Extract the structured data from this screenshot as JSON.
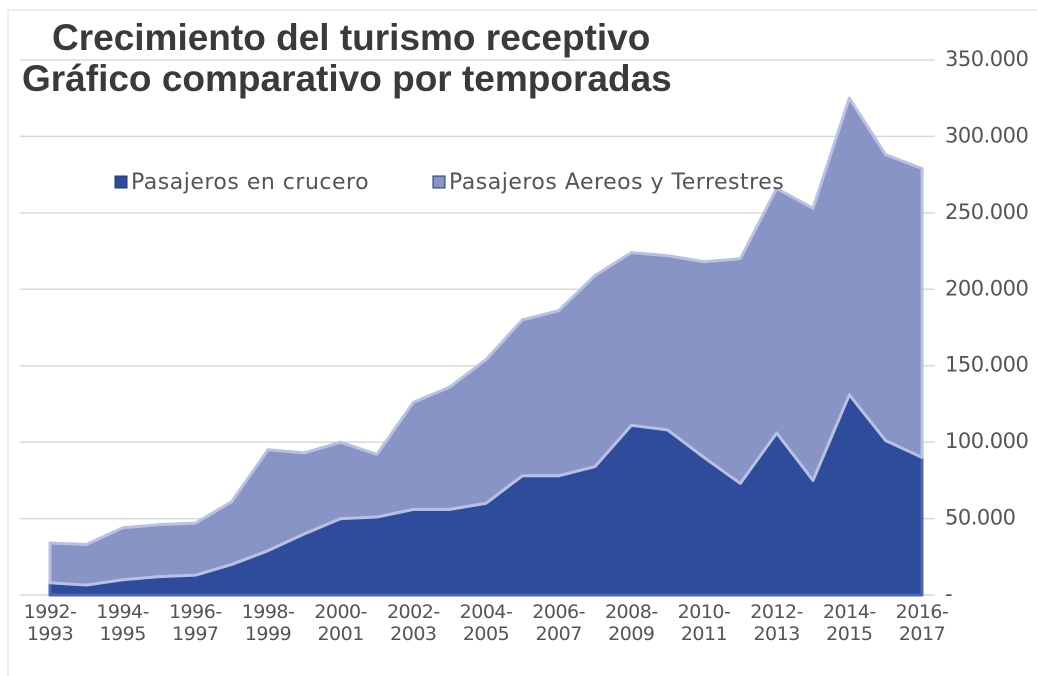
{
  "chart_data": {
    "type": "area",
    "title": "Crecimiento del turismo receptivo",
    "subtitle": "Gráfico comparativo por temporadas",
    "stacked": true,
    "categories": [
      "1992-1993",
      null,
      "1994-1995",
      null,
      "1996-1997",
      null,
      "1998-1999",
      null,
      "2000-2001",
      null,
      "2002-2003",
      null,
      "2004-2005",
      null,
      "2006-2007",
      null,
      "2008-2009",
      null,
      "2010-2011",
      null,
      "2012-2013",
      null,
      "2014-2015",
      null,
      "2016-2017"
    ],
    "series": [
      {
        "name": "Pasajeros en crucero",
        "color": "#2f4b9c",
        "values": [
          8000,
          6500,
          10000,
          12000,
          13000,
          20000,
          29000,
          40000,
          50000,
          51000,
          56000,
          56000,
          60000,
          78000,
          78000,
          84000,
          111000,
          108000,
          90000,
          73000,
          106000,
          75000,
          131000,
          101000,
          90000
        ]
      },
      {
        "name": "Pasajeros Aereos y Terrestres",
        "color": "#8894c6",
        "values": [
          26000,
          26500,
          34000,
          34000,
          34000,
          41000,
          66000,
          53000,
          50000,
          41000,
          70000,
          80000,
          94000,
          102000,
          108000,
          125000,
          113000,
          114000,
          128000,
          147000,
          160000,
          178000,
          194000,
          187000,
          189000
        ]
      }
    ],
    "ylim": [
      0,
      350000
    ],
    "yticks": [
      {
        "value": 0,
        "label": "-"
      },
      {
        "value": 50000,
        "label": "50.000"
      },
      {
        "value": 100000,
        "label": "100.000"
      },
      {
        "value": 150000,
        "label": "150.000"
      },
      {
        "value": 200000,
        "label": "200.000"
      },
      {
        "value": 250000,
        "label": "250.000"
      },
      {
        "value": 300000,
        "label": "300.000"
      },
      {
        "value": 350000,
        "label": "350.000"
      }
    ],
    "grid": true,
    "legend": "top-left"
  }
}
